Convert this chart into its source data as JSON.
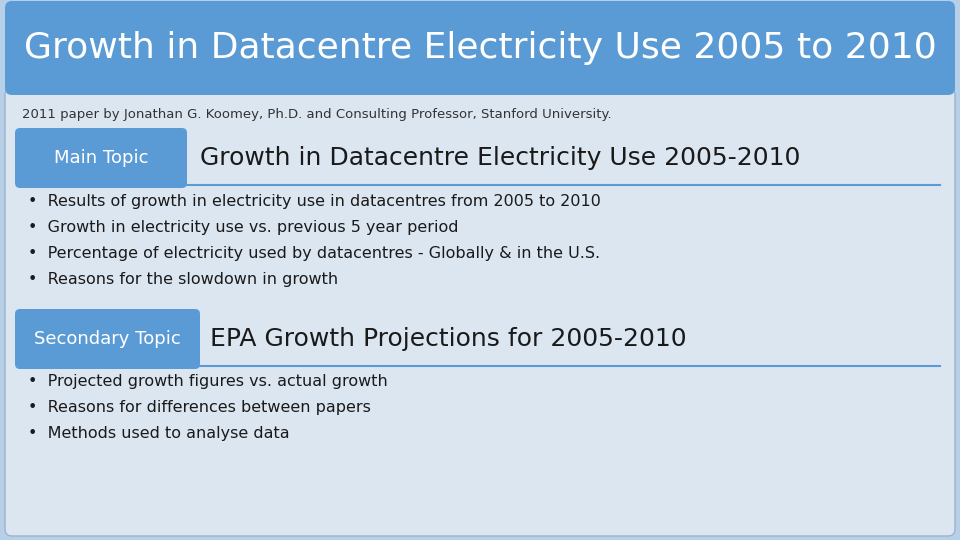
{
  "title": "Growth in Datacentre Electricity Use 2005 to 2010",
  "subtitle": "2011 paper by Jonathan G. Koomey, Ph.D. and Consulting Professor, Stanford University.",
  "main_topic_label": "Main Topic",
  "main_topic_text": "Growth in Datacentre Electricity Use 2005-2010",
  "main_bullets": [
    "Results of growth in electricity use in datacentres from 2005 to 2010",
    "Growth in electricity use vs. previous 5 year period",
    "Percentage of electricity used by datacentres - Globally & in the U.S.",
    "Reasons for the slowdown in growth"
  ],
  "secondary_topic_label": "Secondary Topic",
  "secondary_topic_text": "EPA Growth Projections for 2005-2010",
  "secondary_bullets": [
    "Projected growth figures vs. actual growth",
    "Reasons for differences between papers",
    "Methods used to analyse data"
  ],
  "header_bg": "#5b9bd5",
  "header_text_color": "#ffffff",
  "body_bg": "#dce6f1",
  "outer_bg": "#b8cfe8",
  "tag_bg": "#5b9bd5",
  "tag_text_color": "#ffffff",
  "body_text_color": "#1a1a1a",
  "divider_color": "#5b9bd5",
  "subtitle_color": "#333333",
  "title_fontsize": 26,
  "main_topic_font_size": 18,
  "secondary_topic_font_size": 18,
  "bullet_font_size": 11.5,
  "tag_font_size": 13,
  "subtitle_font_size": 9.5
}
